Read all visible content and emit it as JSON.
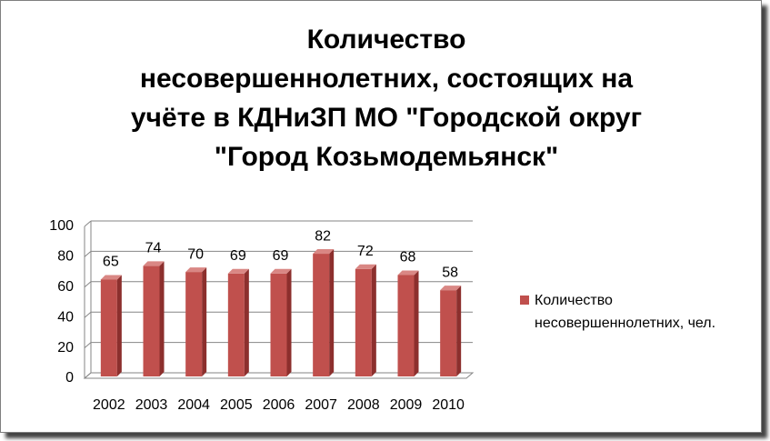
{
  "chart_data": {
    "type": "bar3d",
    "title": "Количество\nнесовершеннолетних, состоящих на\nучёте в КДНиЗП МО \"Городской округ\n\"Город Козьмодемьянск\"",
    "categories": [
      "2002",
      "2003",
      "2004",
      "2005",
      "2006",
      "2007",
      "2008",
      "2009",
      "2010"
    ],
    "series": [
      {
        "name": "Количество несовершеннолетних, чел.",
        "color": "#c0504d",
        "values": [
          65,
          74,
          70,
          69,
          69,
          82,
          72,
          68,
          58
        ]
      }
    ],
    "ylim": [
      0,
      100
    ],
    "yticks": [
      0,
      20,
      40,
      60,
      80,
      100
    ],
    "grid": true,
    "legend": "right"
  }
}
